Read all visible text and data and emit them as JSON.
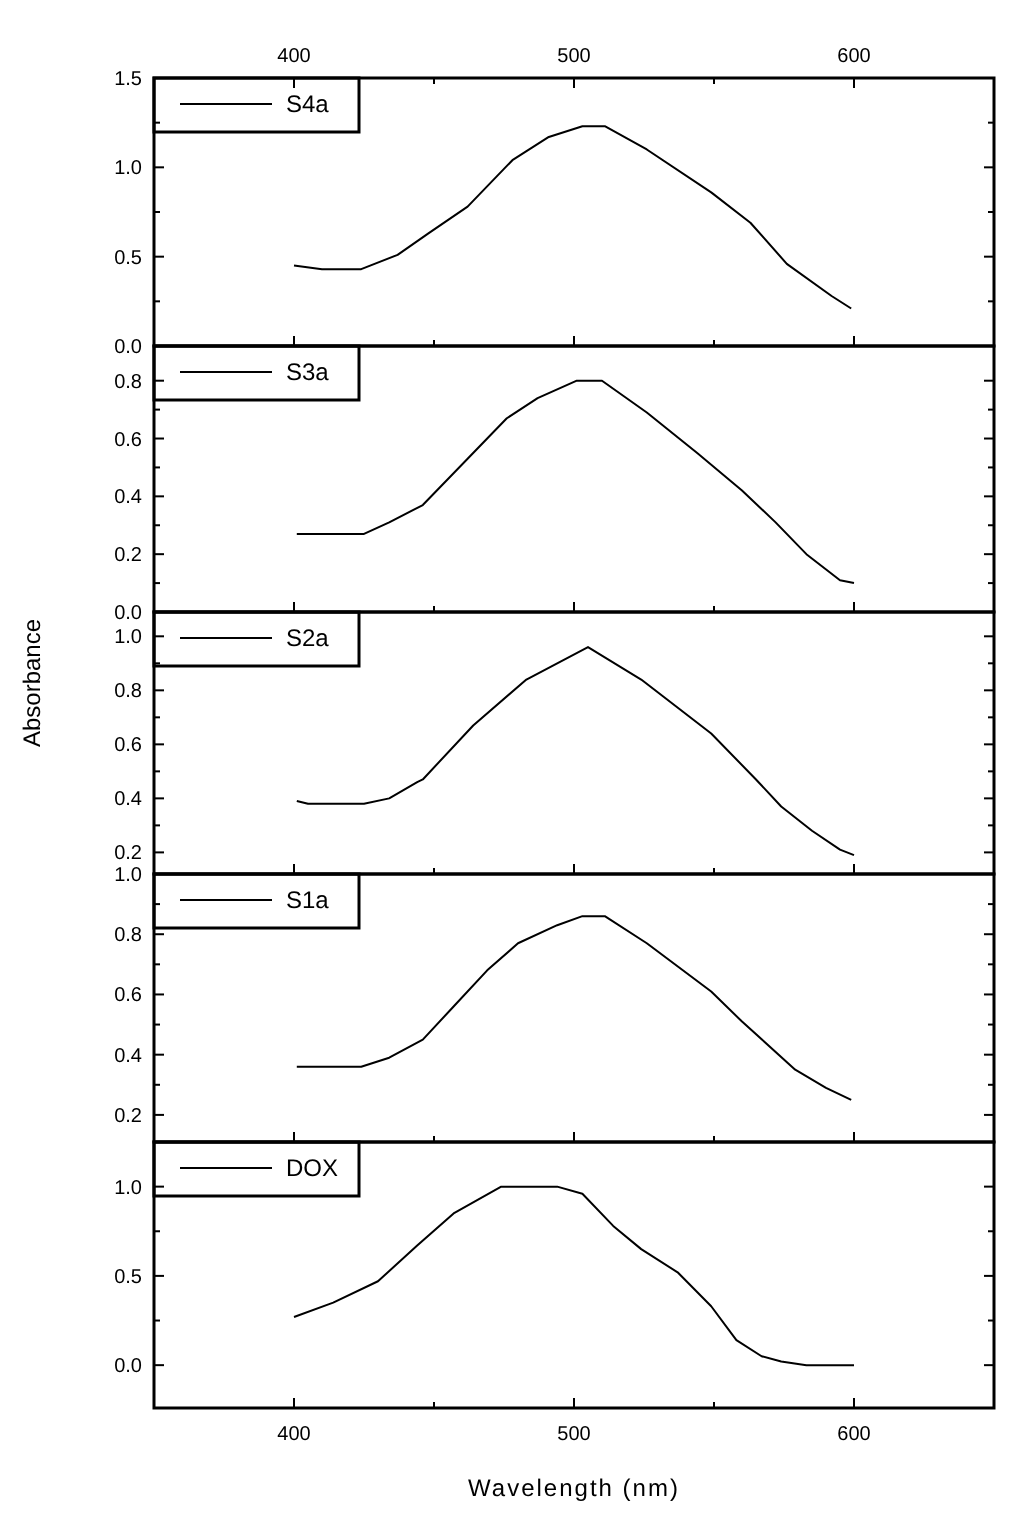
{
  "chart_data": [
    {
      "type": "line",
      "legend": "top left",
      "tick_labels": "y",
      "xlim": [
        350,
        650
      ],
      "xticks": [
        {
          "value": 400,
          "label": null
        },
        {
          "value": 450,
          "label": null
        },
        {
          "value": 500,
          "label": null
        },
        {
          "value": 550,
          "label": null
        },
        {
          "value": 600,
          "label": null
        }
      ],
      "x2lim": [
        350,
        650
      ],
      "x2ticks": [
        400,
        {
          "value": 450,
          "label": null
        },
        500,
        {
          "value": 550,
          "label": null
        },
        600
      ],
      "ylim": [
        0,
        1.5
      ],
      "yticks": [
        {
          "value": 0,
          "label": "0.0"
        },
        {
          "value": 0.25,
          "label": null
        },
        {
          "value": 0.5,
          "label": "0.5"
        },
        {
          "value": 0.75,
          "label": null
        },
        {
          "value": 1,
          "label": "1.0"
        },
        {
          "value": 1.25,
          "label": null
        },
        {
          "value": 1.5,
          "label": "1.5"
        }
      ],
      "series": [
        {
          "name": "S4a",
          "color": "#000000",
          "x": [
            400,
            410,
            424,
            437,
            448,
            462,
            478,
            491,
            503,
            511,
            526,
            549,
            563,
            576,
            592,
            599
          ],
          "values": [
            0.45,
            0.43,
            0.43,
            0.51,
            0.63,
            0.78,
            1.04,
            1.17,
            1.23,
            1.23,
            1.1,
            0.86,
            0.69,
            0.46,
            0.28,
            0.21
          ]
        }
      ]
    },
    {
      "type": "line",
      "legend": "top left",
      "tick_labels": "y",
      "xlim": [
        350,
        650
      ],
      "xticks": [
        {
          "value": 400,
          "label": null
        },
        {
          "value": 450,
          "label": null
        },
        {
          "value": 500,
          "label": null
        },
        {
          "value": 550,
          "label": null
        },
        {
          "value": 600,
          "label": null
        }
      ],
      "ylim": [
        0,
        0.92
      ],
      "yticks": [
        {
          "value": 0,
          "label": "0.0"
        },
        {
          "value": 0.1,
          "label": null
        },
        {
          "value": 0.2,
          "label": "0.2"
        },
        {
          "value": 0.3,
          "label": null
        },
        {
          "value": 0.4,
          "label": "0.4"
        },
        {
          "value": 0.5,
          "label": null
        },
        {
          "value": 0.6,
          "label": "0.6"
        },
        {
          "value": 0.7,
          "label": null
        },
        {
          "value": 0.8,
          "label": "0.8"
        }
      ],
      "series": [
        {
          "name": "S3a",
          "color": "#000000",
          "x": [
            401,
            425,
            434,
            446,
            462,
            476,
            487,
            501,
            510,
            526,
            544,
            560,
            572,
            583,
            595,
            600
          ],
          "values": [
            0.27,
            0.27,
            0.31,
            0.37,
            0.53,
            0.67,
            0.74,
            0.8,
            0.8,
            0.69,
            0.55,
            0.42,
            0.31,
            0.2,
            0.11,
            0.1
          ]
        }
      ]
    },
    {
      "type": "line",
      "legend": "top left",
      "tick_labels": "y",
      "ylabel": "Absorbance",
      "xlim": [
        350,
        650
      ],
      "xticks": [
        {
          "value": 400,
          "label": null
        },
        {
          "value": 450,
          "label": null
        },
        {
          "value": 500,
          "label": null
        },
        {
          "value": 550,
          "label": null
        },
        {
          "value": 600,
          "label": null
        }
      ],
      "ylim": [
        0.12,
        1.09
      ],
      "yticks": [
        {
          "value": 0.2,
          "label": "0.2"
        },
        {
          "value": 0.3,
          "label": null
        },
        {
          "value": 0.4,
          "label": "0.4"
        },
        {
          "value": 0.5,
          "label": null
        },
        {
          "value": 0.6,
          "label": "0.6"
        },
        {
          "value": 0.7,
          "label": null
        },
        {
          "value": 0.8,
          "label": "0.8"
        },
        {
          "value": 0.9,
          "label": null
        },
        {
          "value": 1,
          "label": "1.0"
        }
      ],
      "series": [
        {
          "name": "S2a",
          "color": "#000000",
          "x": [
            401,
            405,
            425,
            434,
            444,
            446,
            464,
            483,
            505,
            524,
            549,
            565,
            574,
            585,
            595,
            600
          ],
          "values": [
            0.39,
            0.38,
            0.38,
            0.4,
            0.46,
            0.47,
            0.67,
            0.84,
            0.96,
            0.84,
            0.64,
            0.47,
            0.37,
            0.28,
            0.21,
            0.19
          ]
        }
      ]
    },
    {
      "type": "line",
      "legend": "top left",
      "tick_labels": "y",
      "xlim": [
        350,
        650
      ],
      "xticks": [
        {
          "value": 400,
          "label": null
        },
        {
          "value": 450,
          "label": null
        },
        {
          "value": 500,
          "label": null
        },
        {
          "value": 550,
          "label": null
        },
        {
          "value": 600,
          "label": null
        }
      ],
      "ylim": [
        0.11,
        1
      ],
      "yticks": [
        {
          "value": 0.2,
          "label": "0.2"
        },
        {
          "value": 0.3,
          "label": null
        },
        {
          "value": 0.4,
          "label": "0.4"
        },
        {
          "value": 0.5,
          "label": null
        },
        {
          "value": 0.6,
          "label": "0.6"
        },
        {
          "value": 0.7,
          "label": null
        },
        {
          "value": 0.8,
          "label": "0.8"
        },
        {
          "value": 0.9,
          "label": null
        },
        {
          "value": 1,
          "label": "1.0"
        }
      ],
      "series": [
        {
          "name": "S1a",
          "color": "#000000",
          "x": [
            401,
            424,
            434,
            446,
            457,
            469,
            480,
            494,
            503,
            511,
            526,
            549,
            560,
            579,
            590,
            599
          ],
          "values": [
            0.36,
            0.36,
            0.39,
            0.45,
            0.56,
            0.68,
            0.77,
            0.83,
            0.86,
            0.86,
            0.77,
            0.61,
            0.51,
            0.35,
            0.29,
            0.25
          ]
        }
      ]
    },
    {
      "type": "line",
      "legend": "top left",
      "xlabel": "Wavelength (nm)",
      "xlim": [
        350,
        650
      ],
      "xticks": [
        400,
        {
          "value": 450,
          "label": null
        },
        500,
        {
          "value": 550,
          "label": null
        },
        600
      ],
      "ylim": [
        -0.24,
        1.25
      ],
      "yticks": [
        {
          "value": 0,
          "label": "0.0"
        },
        {
          "value": 0.25,
          "label": null
        },
        {
          "value": 0.5,
          "label": "0.5"
        },
        {
          "value": 0.75,
          "label": null
        },
        {
          "value": 1,
          "label": "1.0"
        }
      ],
      "series": [
        {
          "name": "DOX",
          "color": "#000000",
          "x": [
            400,
            414,
            430,
            444,
            457,
            474,
            494,
            503,
            514,
            524,
            537,
            549,
            558,
            567,
            574,
            583,
            600
          ],
          "values": [
            0.27,
            0.35,
            0.47,
            0.67,
            0.85,
            1,
            1,
            0.96,
            0.78,
            0.65,
            0.52,
            0.33,
            0.14,
            0.05,
            0.02,
            0,
            0
          ]
        }
      ]
    }
  ]
}
